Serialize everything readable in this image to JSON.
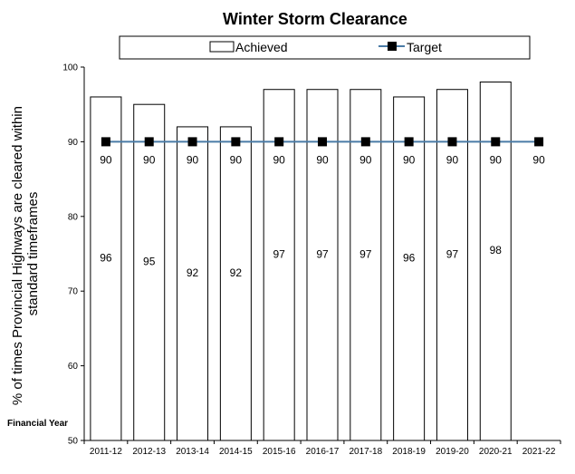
{
  "chart_data": {
    "type": "bar",
    "title": "Winter Storm Clearance",
    "xlabel": "Financial Year",
    "ylabel_lines": [
      "% of times Provincial Highways are cleared within",
      "standard timeframes"
    ],
    "ylim": [
      50,
      100
    ],
    "yticks": [
      50,
      60,
      70,
      80,
      90,
      100
    ],
    "grid": false,
    "legend_position": "top",
    "categories": [
      "2011-12",
      "2012-13",
      "2013-14",
      "2014-15",
      "2015-16",
      "2016-17",
      "2017-18",
      "2018-19",
      "2019-20",
      "2020-21",
      "2021-22"
    ],
    "series": [
      {
        "name": "Achieved",
        "kind": "bar",
        "values": [
          96,
          95,
          92,
          92,
          97,
          97,
          97,
          96,
          97,
          98,
          null
        ],
        "labels": [
          "96",
          "95",
          "92",
          "92",
          "97",
          "97",
          "97",
          "96",
          "97",
          "98",
          ""
        ],
        "fill": "#ffffff",
        "stroke": "#000000"
      },
      {
        "name": "Target",
        "kind": "line",
        "values": [
          90,
          90,
          90,
          90,
          90,
          90,
          90,
          90,
          90,
          90,
          90
        ],
        "labels": [
          "90",
          "90",
          "90",
          "90",
          "90",
          "90",
          "90",
          "90",
          "90",
          "90",
          "90"
        ],
        "line_color": "#4a7ba6",
        "marker_color": "#000000"
      }
    ]
  }
}
